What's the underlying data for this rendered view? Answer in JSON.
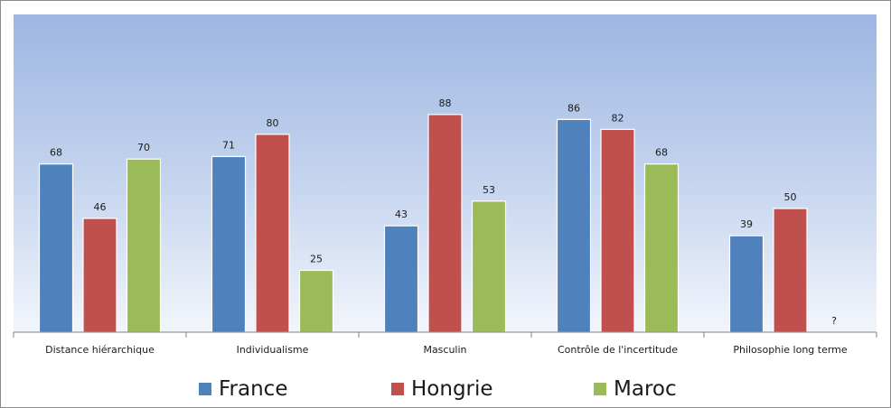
{
  "chart_data": {
    "type": "bar",
    "categories": [
      "Distance hiérarchique",
      "Individualisme",
      "Masculin",
      "Contrôle de l'incertitude",
      "Philosophie long terme"
    ],
    "series": [
      {
        "name": "France",
        "color": "#4f81bd",
        "values": [
          68,
          71,
          43,
          86,
          39
        ],
        "labels": [
          "68",
          "71",
          "43",
          "86",
          "39"
        ]
      },
      {
        "name": "Hongrie",
        "color": "#c0504d",
        "values": [
          46,
          80,
          88,
          82,
          50
        ],
        "labels": [
          "46",
          "80",
          "88",
          "82",
          "50"
        ]
      },
      {
        "name": "Maroc",
        "color": "#9bbb59",
        "values": [
          70,
          25,
          53,
          68,
          null
        ],
        "labels": [
          "70",
          "25",
          "53",
          "68",
          "?"
        ]
      }
    ],
    "ylim": [
      0,
      100
    ],
    "grid": false,
    "legend_position": "bottom"
  }
}
